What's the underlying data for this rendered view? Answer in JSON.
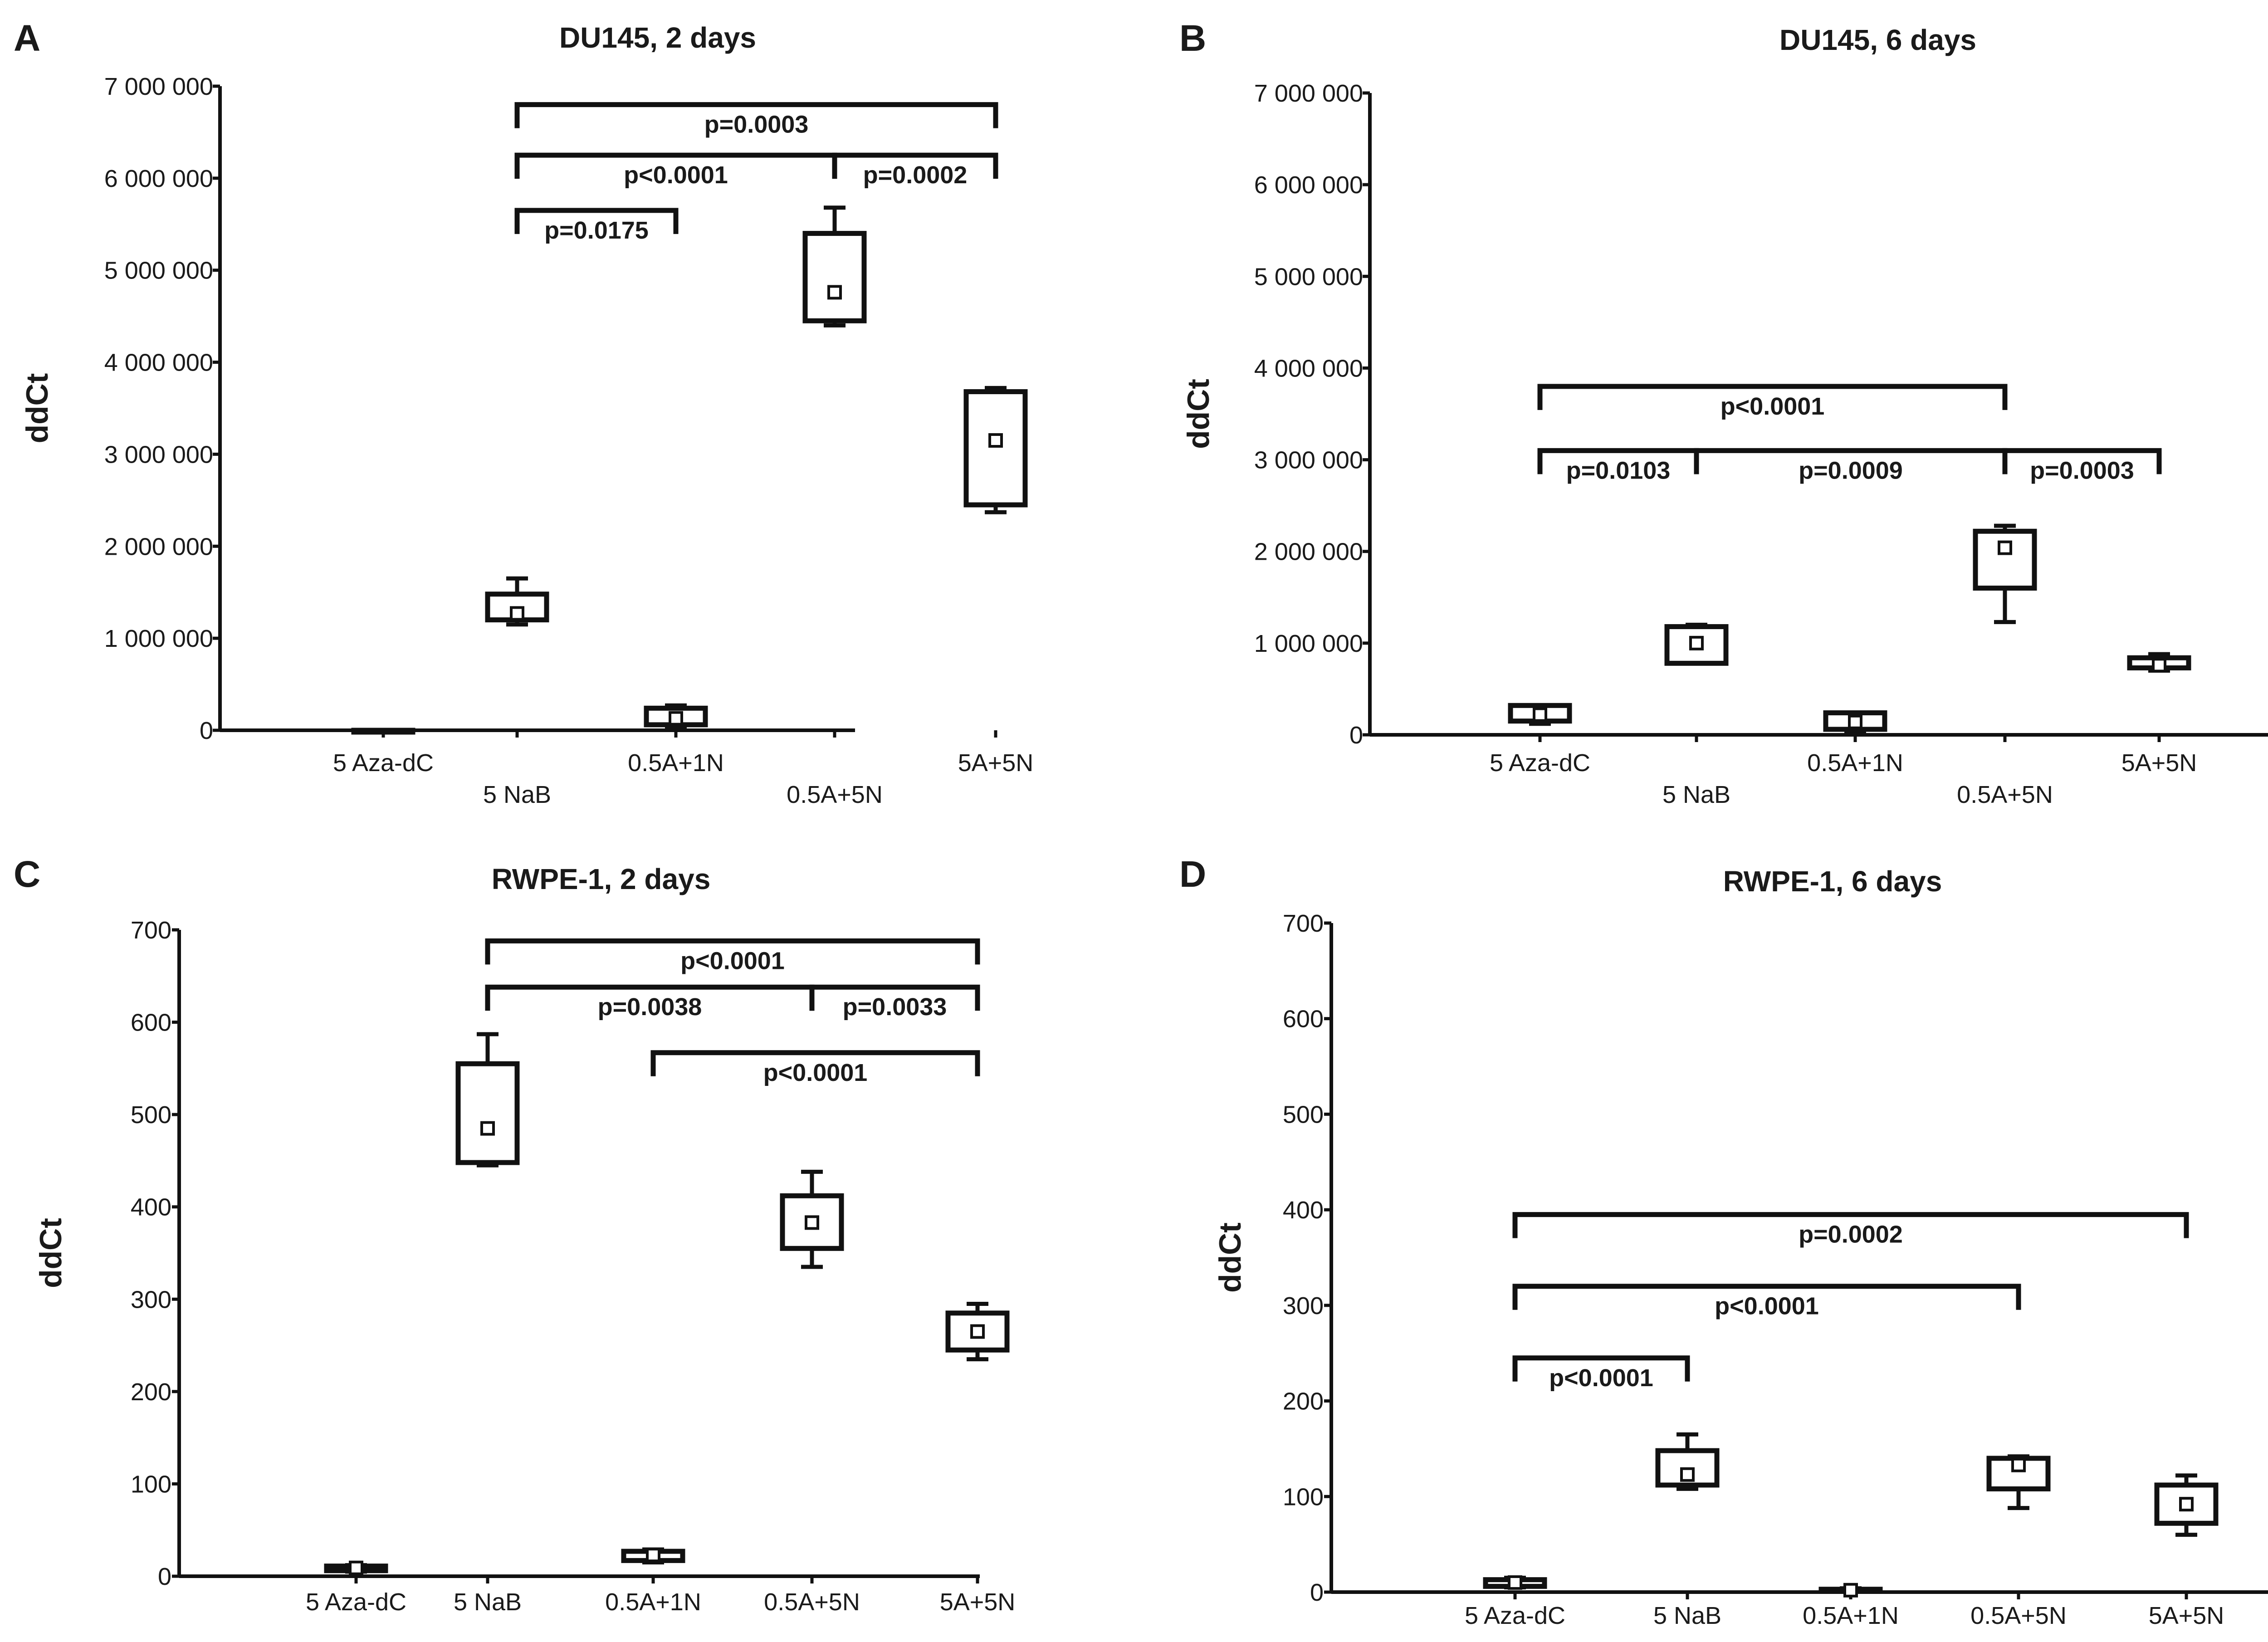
{
  "chart_data": [
    {
      "panel": "A",
      "type": "box",
      "title": "DU145, 2 days",
      "ylabel": "ddCt",
      "ylim": [
        0,
        7000000
      ],
      "yticks": [
        0,
        1000000,
        2000000,
        3000000,
        4000000,
        5000000,
        6000000,
        7000000
      ],
      "yticklabels": [
        "0",
        "1 000 000",
        "2 000 000",
        "3 000 000",
        "4 000 000",
        "5 000 000",
        "6 000 000",
        "7 000 000"
      ],
      "categories": [
        "5 Aza-dC",
        "5 NaB",
        "0.5A+1N",
        "0.5A+5N",
        "5A+5N"
      ],
      "boxes": [
        {
          "min": 0,
          "q1": 0,
          "q3": 0,
          "max": 0,
          "mean": 0
        },
        {
          "min": 1150000,
          "q1": 1200000,
          "q3": 1480000,
          "max": 1650000,
          "mean": 1270000
        },
        {
          "min": 30000,
          "q1": 60000,
          "q3": 240000,
          "max": 270000,
          "mean": 130000
        },
        {
          "min": 4400000,
          "q1": 4450000,
          "q3": 5400000,
          "max": 5680000,
          "mean": 4760000
        },
        {
          "min": 2370000,
          "q1": 2450000,
          "q3": 3680000,
          "max": 3720000,
          "mean": 3150000
        }
      ],
      "comparisons": [
        {
          "from": 1,
          "to": 4,
          "level": 6800000,
          "label": "p=0.0003"
        },
        {
          "from": 1,
          "to": 3,
          "level": 6250000,
          "label": "p<0.0001"
        },
        {
          "from": 3,
          "to": 4,
          "level": 6250000,
          "label": "p=0.0002"
        },
        {
          "from": 1,
          "to": 2,
          "level": 5650000,
          "label": "p=0.0175"
        }
      ]
    },
    {
      "panel": "B",
      "type": "box",
      "title": "DU145, 6 days",
      "ylabel": "ddCt",
      "ylim": [
        0,
        7000000
      ],
      "yticks": [
        0,
        1000000,
        2000000,
        3000000,
        4000000,
        5000000,
        6000000,
        7000000
      ],
      "yticklabels": [
        "0",
        "1 000 000",
        "2 000 000",
        "3 000 000",
        "4 000 000",
        "5 000 000",
        "6 000 000",
        "7 000 000"
      ],
      "categories": [
        "5 Aza-dC",
        "5 NaB",
        "0.5A+1N",
        "0.5A+5N",
        "5A+5N"
      ],
      "boxes": [
        {
          "min": 120000,
          "q1": 150000,
          "q3": 320000,
          "max": 320000,
          "mean": 220000
        },
        {
          "min": 780000,
          "q1": 780000,
          "q3": 1180000,
          "max": 1200000,
          "mean": 1000000
        },
        {
          "min": 30000,
          "q1": 60000,
          "q3": 240000,
          "max": 240000,
          "mean": 140000
        },
        {
          "min": 1230000,
          "q1": 1600000,
          "q3": 2220000,
          "max": 2280000,
          "mean": 2040000
        },
        {
          "min": 700000,
          "q1": 730000,
          "q3": 840000,
          "max": 880000,
          "mean": 760000
        }
      ],
      "comparisons": [
        {
          "from": 0,
          "to": 3,
          "level": 3800000,
          "label": "p<0.0001"
        },
        {
          "from": 0,
          "to": 1,
          "level": 3100000,
          "label": "p=0.0103"
        },
        {
          "from": 1,
          "to": 3,
          "level": 3100000,
          "label": "p=0.0009"
        },
        {
          "from": 3,
          "to": 4,
          "level": 3100000,
          "label": "p=0.0003"
        }
      ]
    },
    {
      "panel": "C",
      "type": "box",
      "title": "RWPE-1, 2 days",
      "ylabel": "ddCt",
      "ylim": [
        0,
        700
      ],
      "yticks": [
        0,
        100,
        200,
        300,
        400,
        500,
        600,
        700
      ],
      "yticklabels": [
        "0",
        "100",
        "200",
        "300",
        "400",
        "500",
        "600",
        "700"
      ],
      "categories": [
        "5 Aza-dC",
        "5 NaB",
        "0.5A+1N",
        "0.5A+5N",
        "5A+5N"
      ],
      "boxes": [
        {
          "min": 5,
          "q1": 6,
          "q3": 11,
          "max": 12,
          "mean": 9
        },
        {
          "min": 445,
          "q1": 448,
          "q3": 555,
          "max": 587,
          "mean": 485
        },
        {
          "min": 15,
          "q1": 17,
          "q3": 27,
          "max": 29,
          "mean": 23
        },
        {
          "min": 335,
          "q1": 355,
          "q3": 412,
          "max": 438,
          "mean": 383
        },
        {
          "min": 235,
          "q1": 245,
          "q3": 285,
          "max": 295,
          "mean": 265
        }
      ],
      "comparisons": [
        {
          "from": 1,
          "to": 4,
          "level": 688,
          "label": "p<0.0001"
        },
        {
          "from": 1,
          "to": 3,
          "level": 638,
          "label": "p=0.0038"
        },
        {
          "from": 3,
          "to": 4,
          "level": 638,
          "label": "p=0.0033"
        },
        {
          "from": 2,
          "to": 4,
          "level": 567,
          "label": "p<0.0001"
        }
      ]
    },
    {
      "panel": "D",
      "type": "box",
      "title": "RWPE-1, 6 days",
      "ylabel": "ddCt",
      "ylim": [
        0,
        700
      ],
      "yticks": [
        0,
        100,
        200,
        300,
        400,
        500,
        600,
        700
      ],
      "yticklabels": [
        "0",
        "100",
        "200",
        "300",
        "400",
        "500",
        "600",
        "700"
      ],
      "categories": [
        "5 Aza-dC",
        "5 NaB",
        "0.5A+1N",
        "0.5A+5N",
        "5A+5N"
      ],
      "boxes": [
        {
          "min": 5,
          "q1": 6,
          "q3": 13,
          "max": 15,
          "mean": 10
        },
        {
          "min": 108,
          "q1": 112,
          "q3": 148,
          "max": 165,
          "mean": 123
        },
        {
          "min": 1,
          "q1": 1,
          "q3": 3,
          "max": 4,
          "mean": 2
        },
        {
          "min": 88,
          "q1": 108,
          "q3": 140,
          "max": 142,
          "mean": 133
        },
        {
          "min": 60,
          "q1": 72,
          "q3": 112,
          "max": 122,
          "mean": 92
        }
      ],
      "comparisons": [
        {
          "from": 0,
          "to": 4,
          "level": 395,
          "label": "p=0.0002"
        },
        {
          "from": 0,
          "to": 3,
          "level": 320,
          "label": "p<0.0001"
        },
        {
          "from": 0,
          "to": 1,
          "level": 245,
          "label": "p<0.0001"
        }
      ]
    }
  ]
}
